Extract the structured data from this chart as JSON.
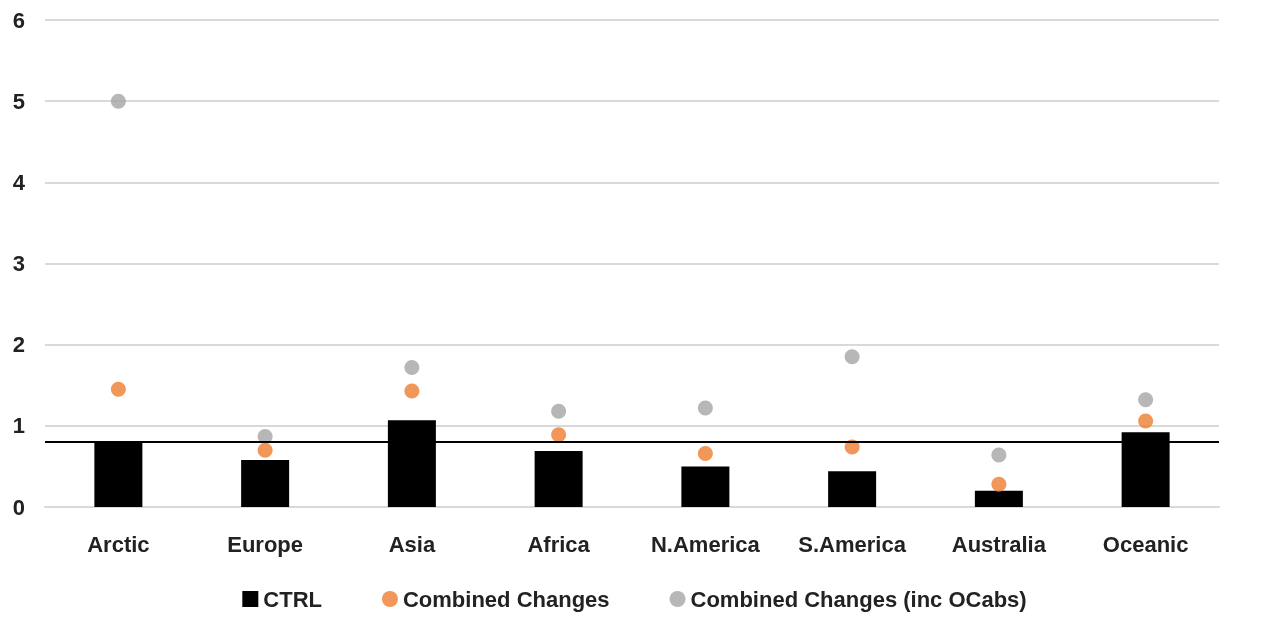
{
  "chart_data": {
    "type": "bar",
    "categories": [
      "Arctic",
      "Europe",
      "Asia",
      "Africa",
      "N.America",
      "S.America",
      "Australia",
      "Oceanic"
    ],
    "series": [
      {
        "name": "CTRL",
        "color": "#000000",
        "values": [
          0.79,
          0.58,
          1.07,
          0.69,
          0.5,
          0.44,
          0.2,
          0.92
        ]
      },
      {
        "name": "Combined Changes",
        "type": "scatter",
        "color": "#ed7d31",
        "values": [
          1.45,
          0.7,
          1.43,
          0.89,
          0.66,
          0.74,
          0.28,
          1.06
        ]
      },
      {
        "name": "Combined Changes (inc OCabs)",
        "type": "scatter",
        "color": "#a5a5a5",
        "values": [
          5.0,
          0.87,
          1.72,
          1.18,
          1.22,
          1.85,
          0.64,
          1.32
        ]
      }
    ],
    "ylim": [
      0,
      6
    ],
    "yticks": [
      0,
      1,
      2,
      3,
      4,
      5,
      6
    ],
    "grid": "y",
    "legend": "bottom",
    "marker": "circle",
    "ref_lines": [
      {
        "axis": "y",
        "value": 0.8,
        "color": "#000000",
        "line_style": "solid"
      }
    ]
  }
}
